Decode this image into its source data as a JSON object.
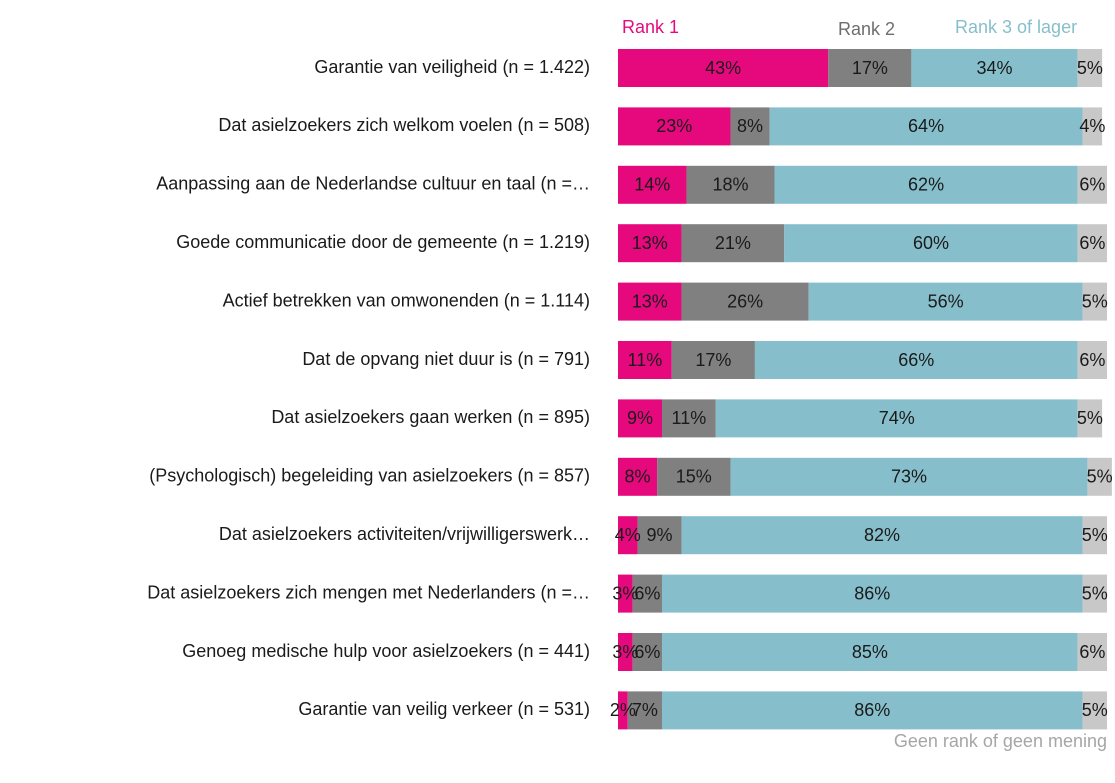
{
  "chart_data": {
    "type": "stacked-barh",
    "categories": [
      "Garantie van veiligheid (n = 1.422)",
      "Dat asielzoekers zich welkom voelen (n = 508)",
      "Aanpassing aan de Nederlandse cultuur en taal (n =…",
      "Goede communicatie door de gemeente (n = 1.219)",
      "Actief betrekken van omwonenden (n = 1.114)",
      "Dat de opvang niet duur is (n = 791)",
      "Dat asielzoekers gaan werken (n = 895)",
      "(Psychologisch) begeleiding van asielzoekers (n = 857)",
      "Dat asielzoekers activiteiten/vrijwilligerswerk…",
      "Dat asielzoekers zich mengen met Nederlanders (n =…",
      "Genoeg medische hulp voor asielzoekers (n = 441)",
      "Garantie van veilig verkeer (n = 531)"
    ],
    "series": [
      {
        "name": "Rank 1",
        "color": "#e6097d",
        "values": [
          43,
          23,
          14,
          13,
          13,
          11,
          9,
          8,
          4,
          3,
          3,
          2
        ],
        "value_labels": [
          "43%",
          "23%",
          "14%",
          "13%",
          "13%",
          "11%",
          "9%",
          "8%",
          "4%",
          "3%",
          "3%",
          "2%"
        ]
      },
      {
        "name": "Rank 2",
        "color": "#808080",
        "values": [
          17,
          8,
          18,
          21,
          26,
          17,
          11,
          15,
          9,
          6,
          6,
          7
        ],
        "value_labels": [
          "17%",
          "8%",
          "18%",
          "21%",
          "26%",
          "17%",
          "11%",
          "15%",
          "9%",
          "6%",
          "6%",
          "7%"
        ]
      },
      {
        "name": "Rank 3 of lager",
        "color": "#86bfcb",
        "values": [
          34,
          64,
          62,
          60,
          56,
          66,
          74,
          73,
          82,
          86,
          85,
          86
        ],
        "value_labels": [
          "34%",
          "64%",
          "62%",
          "60%",
          "56%",
          "66%",
          "74%",
          "73%",
          "82%",
          "86%",
          "85%",
          "86%"
        ]
      },
      {
        "name": "Geen rank of geen mening",
        "color": "#c8c8c8",
        "values": [
          5,
          4,
          6,
          6,
          5,
          6,
          5,
          5,
          5,
          5,
          6,
          5
        ],
        "value_labels": [
          "5%",
          "4%",
          "6%",
          "6%",
          "5%",
          "6%",
          "5%",
          "5%",
          "5%",
          "5%",
          "6%",
          "5%"
        ]
      }
    ],
    "xlim": [
      0,
      100
    ]
  }
}
